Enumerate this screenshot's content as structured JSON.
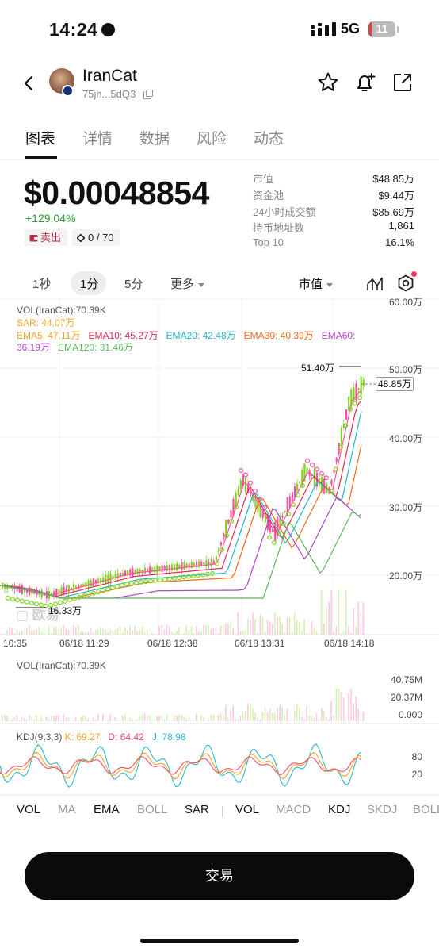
{
  "status": {
    "time": "14:24",
    "network": "5G",
    "battery": "11",
    "battery_level": 0.11
  },
  "header": {
    "name": "IranCat",
    "address": "75jh...5dQ3",
    "icons": [
      "back-icon",
      "star-icon",
      "bell-plus-icon",
      "share-icon",
      "copy-icon"
    ]
  },
  "tabs": [
    {
      "label": "图表",
      "active": true
    },
    {
      "label": "详情",
      "active": false
    },
    {
      "label": "数据",
      "active": false
    },
    {
      "label": "风险",
      "active": false
    },
    {
      "label": "动态",
      "active": false
    }
  ],
  "price": {
    "value": "$0.00048854",
    "change": "+129.04%",
    "sell_label": "卖出",
    "holders_ratio": "0 / 70"
  },
  "stats": [
    {
      "label": "市值",
      "value": "$48.85万"
    },
    {
      "label": "资金池",
      "value": "$9.44万"
    },
    {
      "label": "24小时成交额",
      "value": "$85.69万"
    },
    {
      "label": "持币地址数",
      "value": "1,861"
    },
    {
      "label": "Top 10",
      "value": "16.1%"
    }
  ],
  "intervals": {
    "items": [
      "1秒",
      "1分",
      "5分"
    ],
    "active": "1分",
    "more": "更多",
    "metric": "市值"
  },
  "colors": {
    "up": "#7fd321",
    "down": "#ff4fa3",
    "sar": "#ff55b0",
    "ema5": "#ff4fa3",
    "ema10": "#e02a52",
    "ema20": "#22b8c9",
    "ema30": "#ef6a1a",
    "ema60": "#b045c9",
    "ema120": "#5cb85c",
    "k": "#f5a623",
    "d": "#ef4d70",
    "j": "#2bb7d6"
  },
  "main_chart": {
    "vol_label": "VOL(IranCat):70.39K",
    "sar": "SAR: 44.07万",
    "ema5": "EMA5: 47.11万",
    "ema10": "EMA10: 45.27万",
    "ema20": "EMA20: 42.48万",
    "ema30": "EMA30: 40.39万",
    "ema60_a": "EMA60:",
    "ema60_b": "36.19万",
    "ema120": "EMA120: 31.46万",
    "y_axis": [
      "60.00万",
      "50.00万",
      "40.00万",
      "30.00万",
      "20.00万"
    ],
    "current_value": "48.85万",
    "high": "51.40万",
    "low": "16.33万",
    "watermark": "欧易",
    "times": [
      "10:35",
      "06/18 11:29",
      "06/18 12:38",
      "06/18 13:31",
      "06/18 14:18"
    ]
  },
  "volume_panel": {
    "label": "VOL(IranCat):70.39K",
    "y_axis": [
      "40.75M",
      "20.37M",
      "0.000"
    ]
  },
  "kdj_panel": {
    "label": "KDJ(9,3,3)",
    "k": "K: 69.27",
    "d": "D: 64.42",
    "j": "J: 78.98",
    "y_axis": [
      "80",
      "20"
    ]
  },
  "indicators": {
    "main": [
      "VOL",
      "MA",
      "EMA",
      "BOLL",
      "SAR"
    ],
    "sub": [
      "VOL",
      "MACD",
      "KDJ",
      "SKDJ",
      "BOLL"
    ],
    "active": [
      "VOL",
      "EMA",
      "SAR",
      "VOL",
      "KDJ"
    ]
  },
  "trade_button": "交易"
}
